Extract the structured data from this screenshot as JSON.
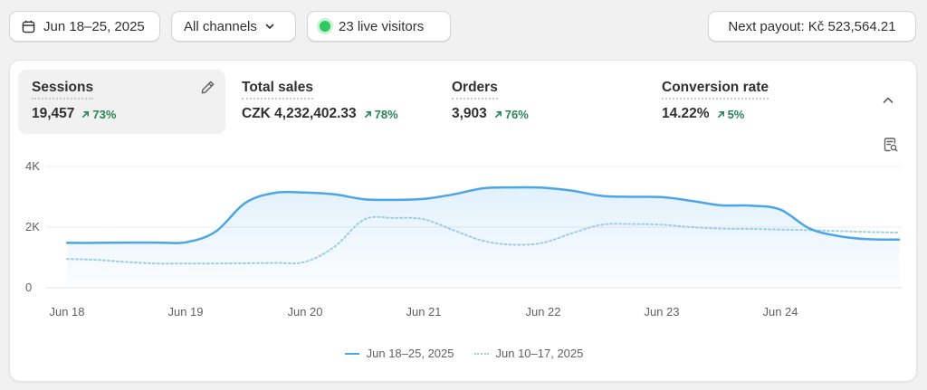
{
  "toolbar": {
    "date_range": "Jun 18–25, 2025",
    "channels": "All channels",
    "live_visitors": "23 live visitors",
    "next_payout": "Next payout: Kč 523,564.21"
  },
  "metrics": [
    {
      "label": "Sessions",
      "value": "19,457",
      "change": "73%",
      "active": true
    },
    {
      "label": "Total sales",
      "value": "CZK 4,232,402.33",
      "change": "78%"
    },
    {
      "label": "Orders",
      "value": "3,903",
      "change": "76%"
    },
    {
      "label": "Conversion rate",
      "value": "14.22%",
      "change": "5%"
    }
  ],
  "colors": {
    "current_series": "#4ba6e8",
    "previous_series": "#9ccde9",
    "positive_change": "#29845a",
    "live_dot": "#2ec95f"
  },
  "icons": {
    "date": "calendar-icon",
    "channels": "chevron-down-icon",
    "edit": "pencil-icon",
    "collapse": "chevron-up-icon",
    "report": "report-search-icon"
  },
  "chart_data": {
    "type": "area",
    "y_tick_labels": [
      "4K",
      "2K",
      "0"
    ],
    "ylim": [
      0,
      4000
    ],
    "grid": true,
    "x_tick_labels": [
      "Jun 18",
      "Jun 19",
      "Jun 20",
      "Jun 21",
      "Jun 22",
      "Jun 23",
      "Jun 24"
    ],
    "x": [
      0,
      0.25,
      0.5,
      0.75,
      1,
      1.25,
      1.5,
      1.75,
      2,
      2.25,
      2.5,
      2.75,
      3,
      3.25,
      3.5,
      3.75,
      4,
      4.25,
      4.5,
      4.75,
      5,
      5.25,
      5.5,
      5.75,
      6,
      6.25,
      6.5,
      6.75,
      7
    ],
    "series": [
      {
        "name": "Jun 18–25, 2025",
        "style": "solid",
        "values": [
          1480,
          1480,
          1490,
          1490,
          1500,
          1850,
          2800,
          3130,
          3140,
          3080,
          2920,
          2900,
          2930,
          3080,
          3280,
          3310,
          3300,
          3200,
          3030,
          3000,
          2990,
          2870,
          2720,
          2710,
          2580,
          1950,
          1700,
          1600,
          1590
        ]
      },
      {
        "name": "Jun 10–17, 2025",
        "style": "dotted",
        "values": [
          950,
          920,
          850,
          800,
          800,
          800,
          810,
          820,
          850,
          1350,
          2250,
          2300,
          2260,
          1900,
          1550,
          1420,
          1480,
          1800,
          2080,
          2100,
          2080,
          2000,
          1950,
          1940,
          1920,
          1900,
          1870,
          1840,
          1820
        ]
      }
    ]
  }
}
